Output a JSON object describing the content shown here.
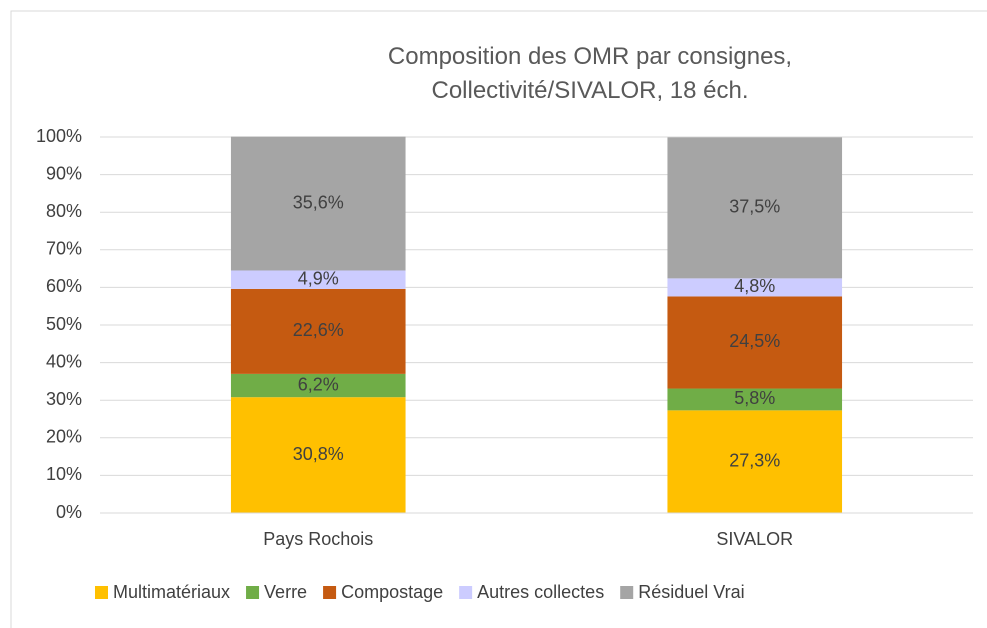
{
  "chart_data": {
    "type": "stacked_bar",
    "title": "Composition des OMR par consignes, Collectivité/SIVALOR, 18 éch.",
    "categories": [
      "Pays Rochois",
      "SIVALOR"
    ],
    "series": [
      {
        "name": "Multimatériaux",
        "color": "#FFC000",
        "values": [
          30.8,
          27.3
        ],
        "value_labels": [
          "30,8%",
          "27,3%"
        ]
      },
      {
        "name": "Verre",
        "color": "#70AD47",
        "values": [
          6.2,
          5.8
        ],
        "value_labels": [
          "6,2%",
          "5,8%"
        ]
      },
      {
        "name": "Compostage",
        "color": "#C55A11",
        "values": [
          22.6,
          24.5
        ],
        "value_labels": [
          "22,6%",
          "24,5%"
        ]
      },
      {
        "name": "Autres collectes",
        "color": "#CCCCFF",
        "values": [
          4.9,
          4.8
        ],
        "value_labels": [
          "4,9%",
          "4,8%"
        ]
      },
      {
        "name": "Résiduel Vrai",
        "color": "#A5A5A5",
        "values": [
          35.6,
          37.5
        ],
        "value_labels": [
          "35,6%",
          "37,5%"
        ]
      }
    ],
    "ylim": [
      0,
      100
    ],
    "yticks": [
      {
        "value": 0,
        "label": "0%"
      },
      {
        "value": 10,
        "label": "10%"
      },
      {
        "value": 20,
        "label": "20%"
      },
      {
        "value": 30,
        "label": "30%"
      },
      {
        "value": 40,
        "label": "40%"
      },
      {
        "value": 50,
        "label": "50%"
      },
      {
        "value": 60,
        "label": "60%"
      },
      {
        "value": 70,
        "label": "70%"
      },
      {
        "value": 80,
        "label": "80%"
      },
      {
        "value": 90,
        "label": "90%"
      },
      {
        "value": 100,
        "label": "100%"
      }
    ],
    "grid": true,
    "legend": "bottom"
  }
}
